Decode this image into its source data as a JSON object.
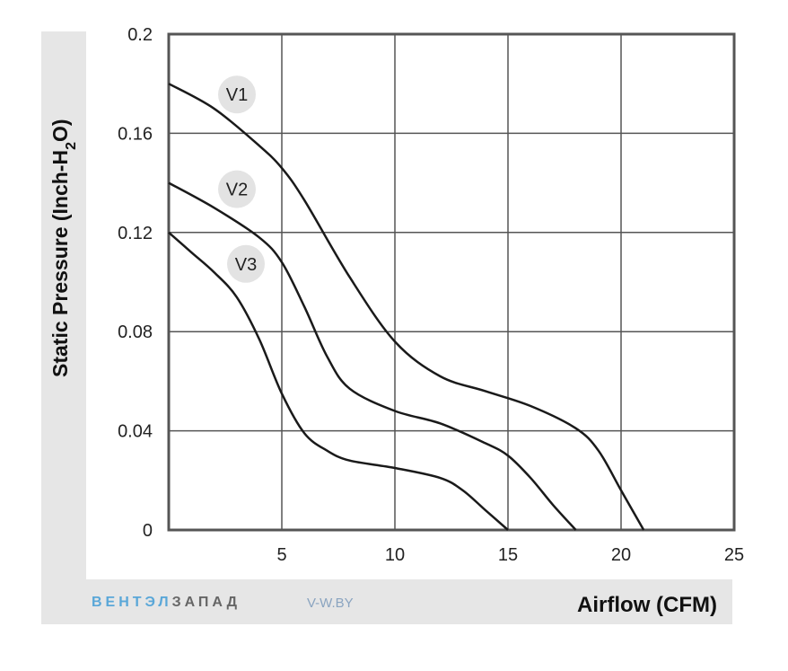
{
  "chart_data": {
    "type": "line",
    "xlabel": "Airflow (CFM)",
    "ylabel_main": "Static Pressure (Inch-H",
    "ylabel_sub": "2",
    "ylabel_tail": "O)",
    "xlim": [
      0,
      25
    ],
    "ylim": [
      0,
      0.2
    ],
    "x_ticks": [
      "5",
      "10",
      "15",
      "20",
      "25"
    ],
    "y_ticks": [
      "0",
      "0.04",
      "0.08",
      "0.12",
      "0.16",
      "0.2"
    ],
    "grid": true,
    "series": [
      {
        "name": "V1",
        "x": [
          0,
          2,
          4,
          5,
          6,
          8,
          10,
          12,
          14,
          16,
          18,
          19,
          20,
          21
        ],
        "y": [
          0.18,
          0.17,
          0.155,
          0.146,
          0.133,
          0.102,
          0.076,
          0.062,
          0.056,
          0.05,
          0.041,
          0.032,
          0.016,
          0
        ]
      },
      {
        "name": "V2",
        "x": [
          0,
          2,
          4,
          5,
          6,
          7,
          8,
          10,
          12,
          14,
          15,
          16,
          17,
          18
        ],
        "y": [
          0.14,
          0.13,
          0.118,
          0.108,
          0.09,
          0.07,
          0.057,
          0.048,
          0.043,
          0.035,
          0.03,
          0.021,
          0.01,
          0
        ]
      },
      {
        "name": "V3",
        "x": [
          0,
          1,
          2,
          3,
          4,
          5,
          6,
          7,
          8,
          10,
          12,
          13,
          14,
          15
        ],
        "y": [
          0.12,
          0.112,
          0.104,
          0.094,
          0.077,
          0.055,
          0.039,
          0.032,
          0.028,
          0.025,
          0.021,
          0.016,
          0.008,
          0
        ]
      }
    ]
  },
  "branding": {
    "brand_part1": "ВЕНТЭЛ",
    "brand_part2": "ЗАПАД",
    "site": "V-W.BY"
  },
  "colors": {
    "curve": "#1a1a1a",
    "grid": "#555555",
    "frame": "#555555",
    "panel": "#e6e6e6",
    "label_circle": "#e3e3e3"
  }
}
